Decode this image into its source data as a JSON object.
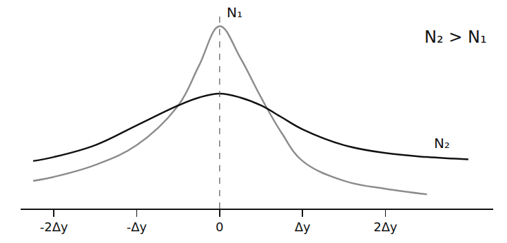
{
  "chart_data": {
    "type": "line",
    "x": [
      -2.25,
      -2,
      -1.5,
      -1,
      -0.5,
      -0.25,
      0,
      0.25,
      0.5,
      0.75,
      1,
      1.5,
      2,
      2.5,
      3
    ],
    "series": [
      {
        "name": "N₁",
        "color": "#8c8c8c",
        "values": [
          3.5,
          4,
          5.5,
          8,
          13,
          18,
          23,
          19,
          14,
          9.5,
          6,
          3.5,
          2.5,
          1.8,
          null
        ]
      },
      {
        "name": "N₂",
        "color": "#111111",
        "values": [
          6,
          6.5,
          8,
          10.5,
          13,
          14,
          14.5,
          14,
          13,
          11.5,
          10,
          8,
          7,
          6.5,
          6.2
        ]
      }
    ],
    "xlim": [
      -2.4,
      3.3
    ],
    "ylim": [
      0,
      25
    ],
    "xticks": [
      {
        "value": -2,
        "label": "-2Δy"
      },
      {
        "value": -1,
        "label": "-Δy"
      },
      0,
      {
        "value": 1,
        "label": "Δy"
      },
      {
        "value": 2,
        "label": "2Δy"
      }
    ],
    "annotations": [
      "N₂ > N₁"
    ],
    "tick_labels": "x",
    "grid": false
  }
}
